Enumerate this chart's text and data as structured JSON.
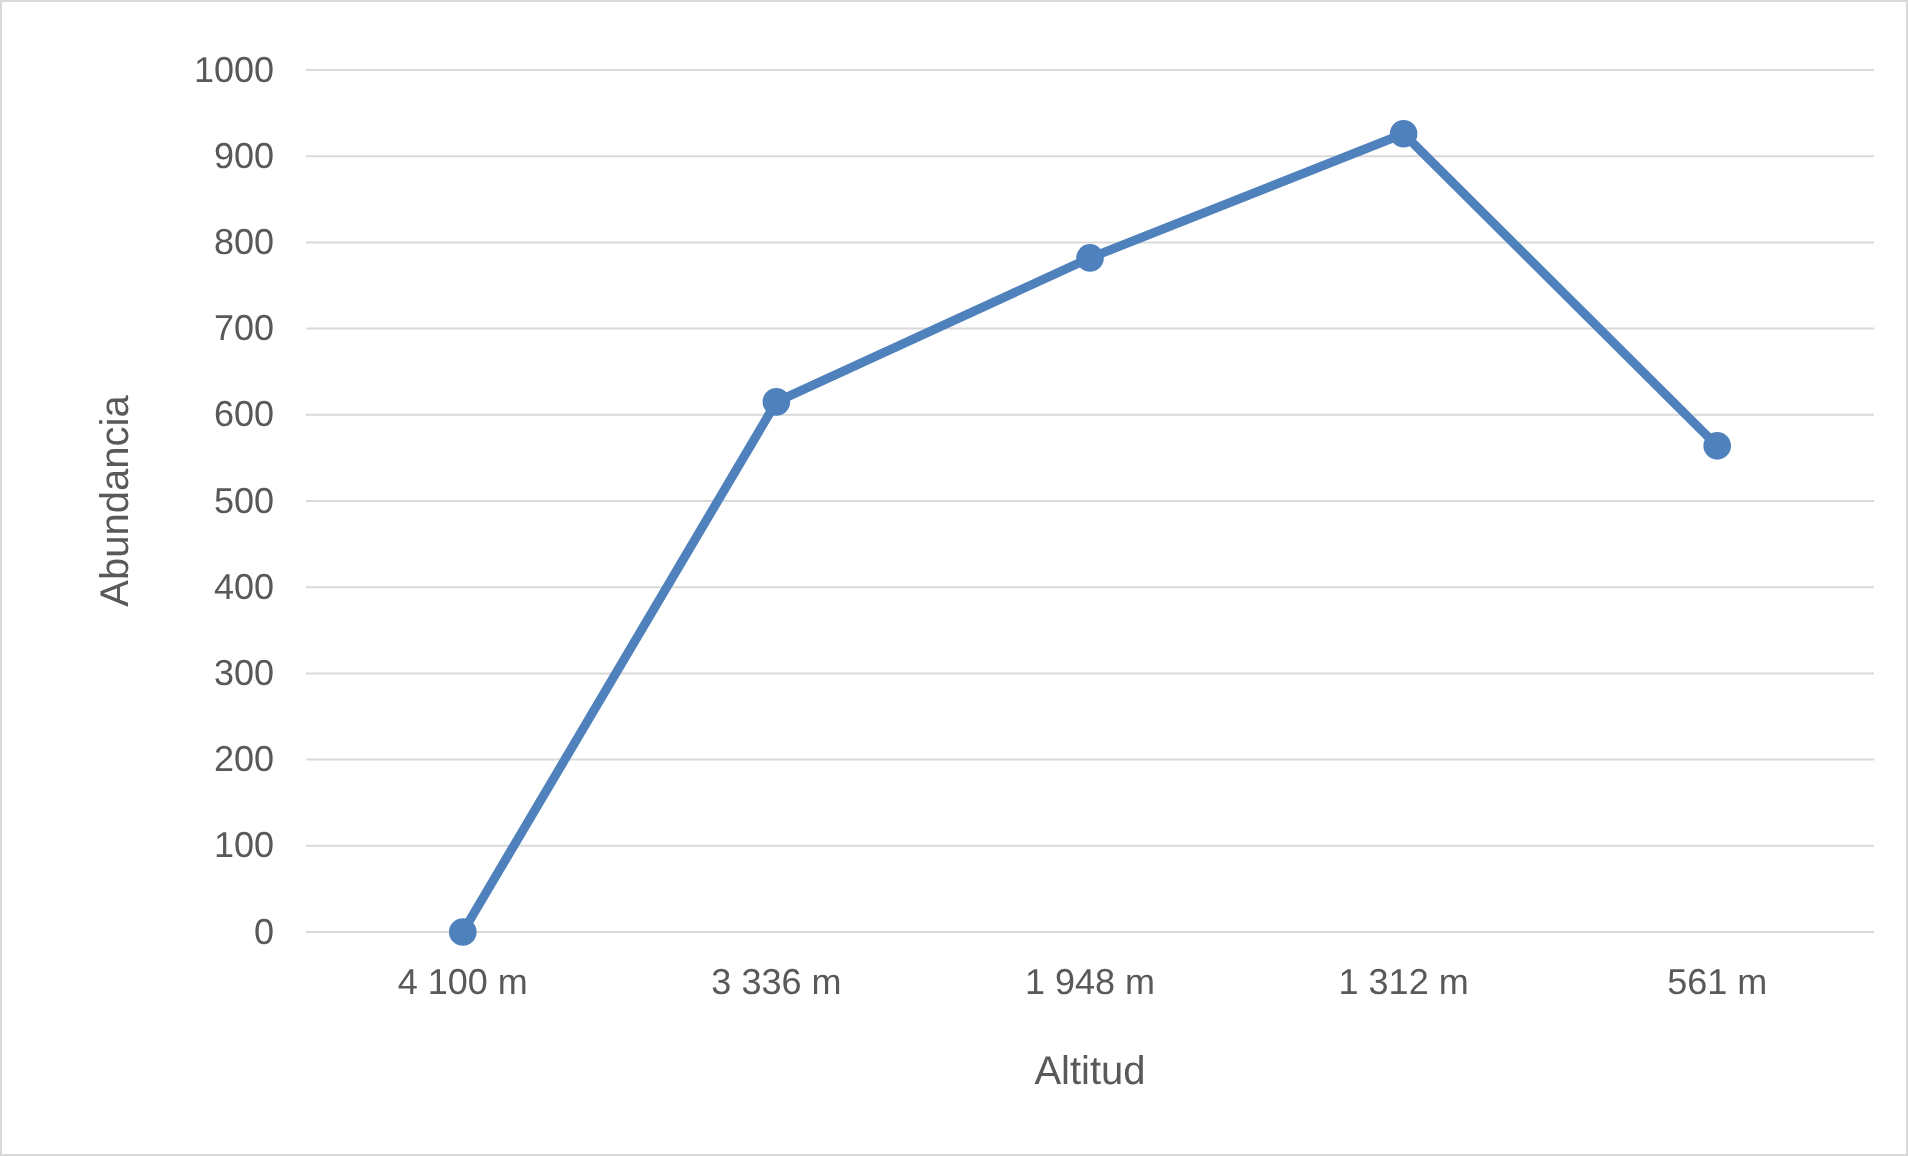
{
  "chart_data": {
    "type": "line",
    "xlabel": "Altitud",
    "ylabel": "Abundancia",
    "categories": [
      "4 100 m",
      "3 336 m",
      "1 948 m",
      "1 312 m",
      "561 m"
    ],
    "series": [
      {
        "color": "#4f81bd",
        "values": [
          0,
          615,
          782,
          926,
          564
        ]
      }
    ],
    "ylim": [
      0,
      1000
    ],
    "yticks": [
      0,
      100,
      200,
      300,
      400,
      500,
      600,
      700,
      800,
      900,
      1000
    ],
    "grid": "y",
    "marker": "circle",
    "line_style": "solid"
  }
}
